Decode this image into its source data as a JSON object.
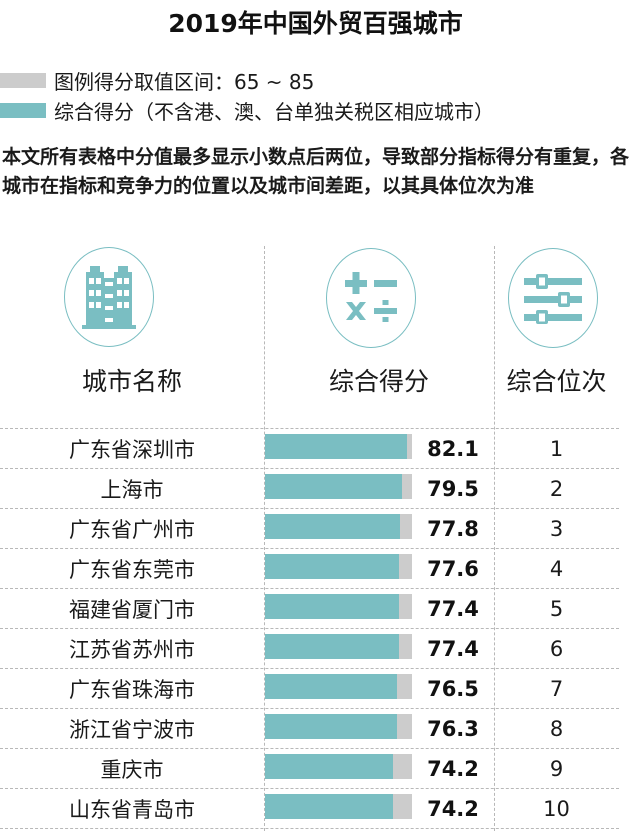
{
  "header": {
    "title": "2019年中国外贸百强城市"
  },
  "legend": {
    "items": [
      {
        "label": "图例得分取值区间：65 ~ 85",
        "color": "#cccccc"
      },
      {
        "label": "综合得分（不含港、澳、台单独关税区相应城市）",
        "color": "#7abec2"
      }
    ]
  },
  "note": "本文所有表格中分值最多显示小数点后两位，导致部分指标得分有重复，各城市在指标和竞争力的位置以及城市间差距，以其具体位次为准",
  "table": {
    "columns": [
      {
        "label": "城市名称",
        "icon": "building-icon"
      },
      {
        "label": "综合得分",
        "icon": "calculator-icon"
      },
      {
        "label": "综合位次",
        "icon": "sliders-icon"
      }
    ],
    "rows": [
      {
        "city": "广东省深圳市",
        "score": "82.1",
        "rank": "1"
      },
      {
        "city": "上海市",
        "score": "79.5",
        "rank": "2"
      },
      {
        "city": "广东省广州市",
        "score": "77.8",
        "rank": "3"
      },
      {
        "city": "广东省东莞市",
        "score": "77.6",
        "rank": "4"
      },
      {
        "city": "福建省厦门市",
        "score": "77.4",
        "rank": "5"
      },
      {
        "city": "江苏省苏州市",
        "score": "77.4",
        "rank": "6"
      },
      {
        "city": "广东省珠海市",
        "score": "76.5",
        "rank": "7"
      },
      {
        "city": "浙江省宁波市",
        "score": "76.3",
        "rank": "8"
      },
      {
        "city": "重庆市",
        "score": "74.2",
        "rank": "9"
      },
      {
        "city": "山东省青岛市",
        "score": "74.2",
        "rank": "10"
      }
    ]
  },
  "colors": {
    "accent": "#7abec2",
    "track": "#cccccc",
    "gridline": "#b8b8b8"
  },
  "chart_data": {
    "type": "bar",
    "orientation": "horizontal",
    "title": "2019年中国外贸百强城市",
    "categories": [
      "广东省深圳市",
      "上海市",
      "广东省广州市",
      "广东省东莞市",
      "福建省厦门市",
      "江苏省苏州市",
      "广东省珠海市",
      "浙江省宁波市",
      "重庆市",
      "山东省青岛市"
    ],
    "series": [
      {
        "name": "综合得分",
        "values": [
          82.1,
          79.5,
          77.8,
          77.6,
          77.4,
          77.4,
          76.5,
          76.3,
          74.2,
          74.2
        ]
      },
      {
        "name": "综合位次",
        "values": [
          1,
          2,
          3,
          4,
          5,
          6,
          7,
          8,
          9,
          10
        ]
      }
    ],
    "legend": [
      "图例得分取值区间：65 ~ 85",
      "综合得分（不含港、澳、台单独关税区相应城市）"
    ],
    "xlabel": "综合得分",
    "ylabel": "城市名称",
    "xlim": [
      0,
      85
    ],
    "grid": true,
    "legend_position": "top-left",
    "annotations": [
      "本文所有表格中分值最多显示小数点后两位，导致部分指标得分有重复，各城市在指标和竞争力的位置以及城市间差距，以其具体位次为准"
    ]
  }
}
